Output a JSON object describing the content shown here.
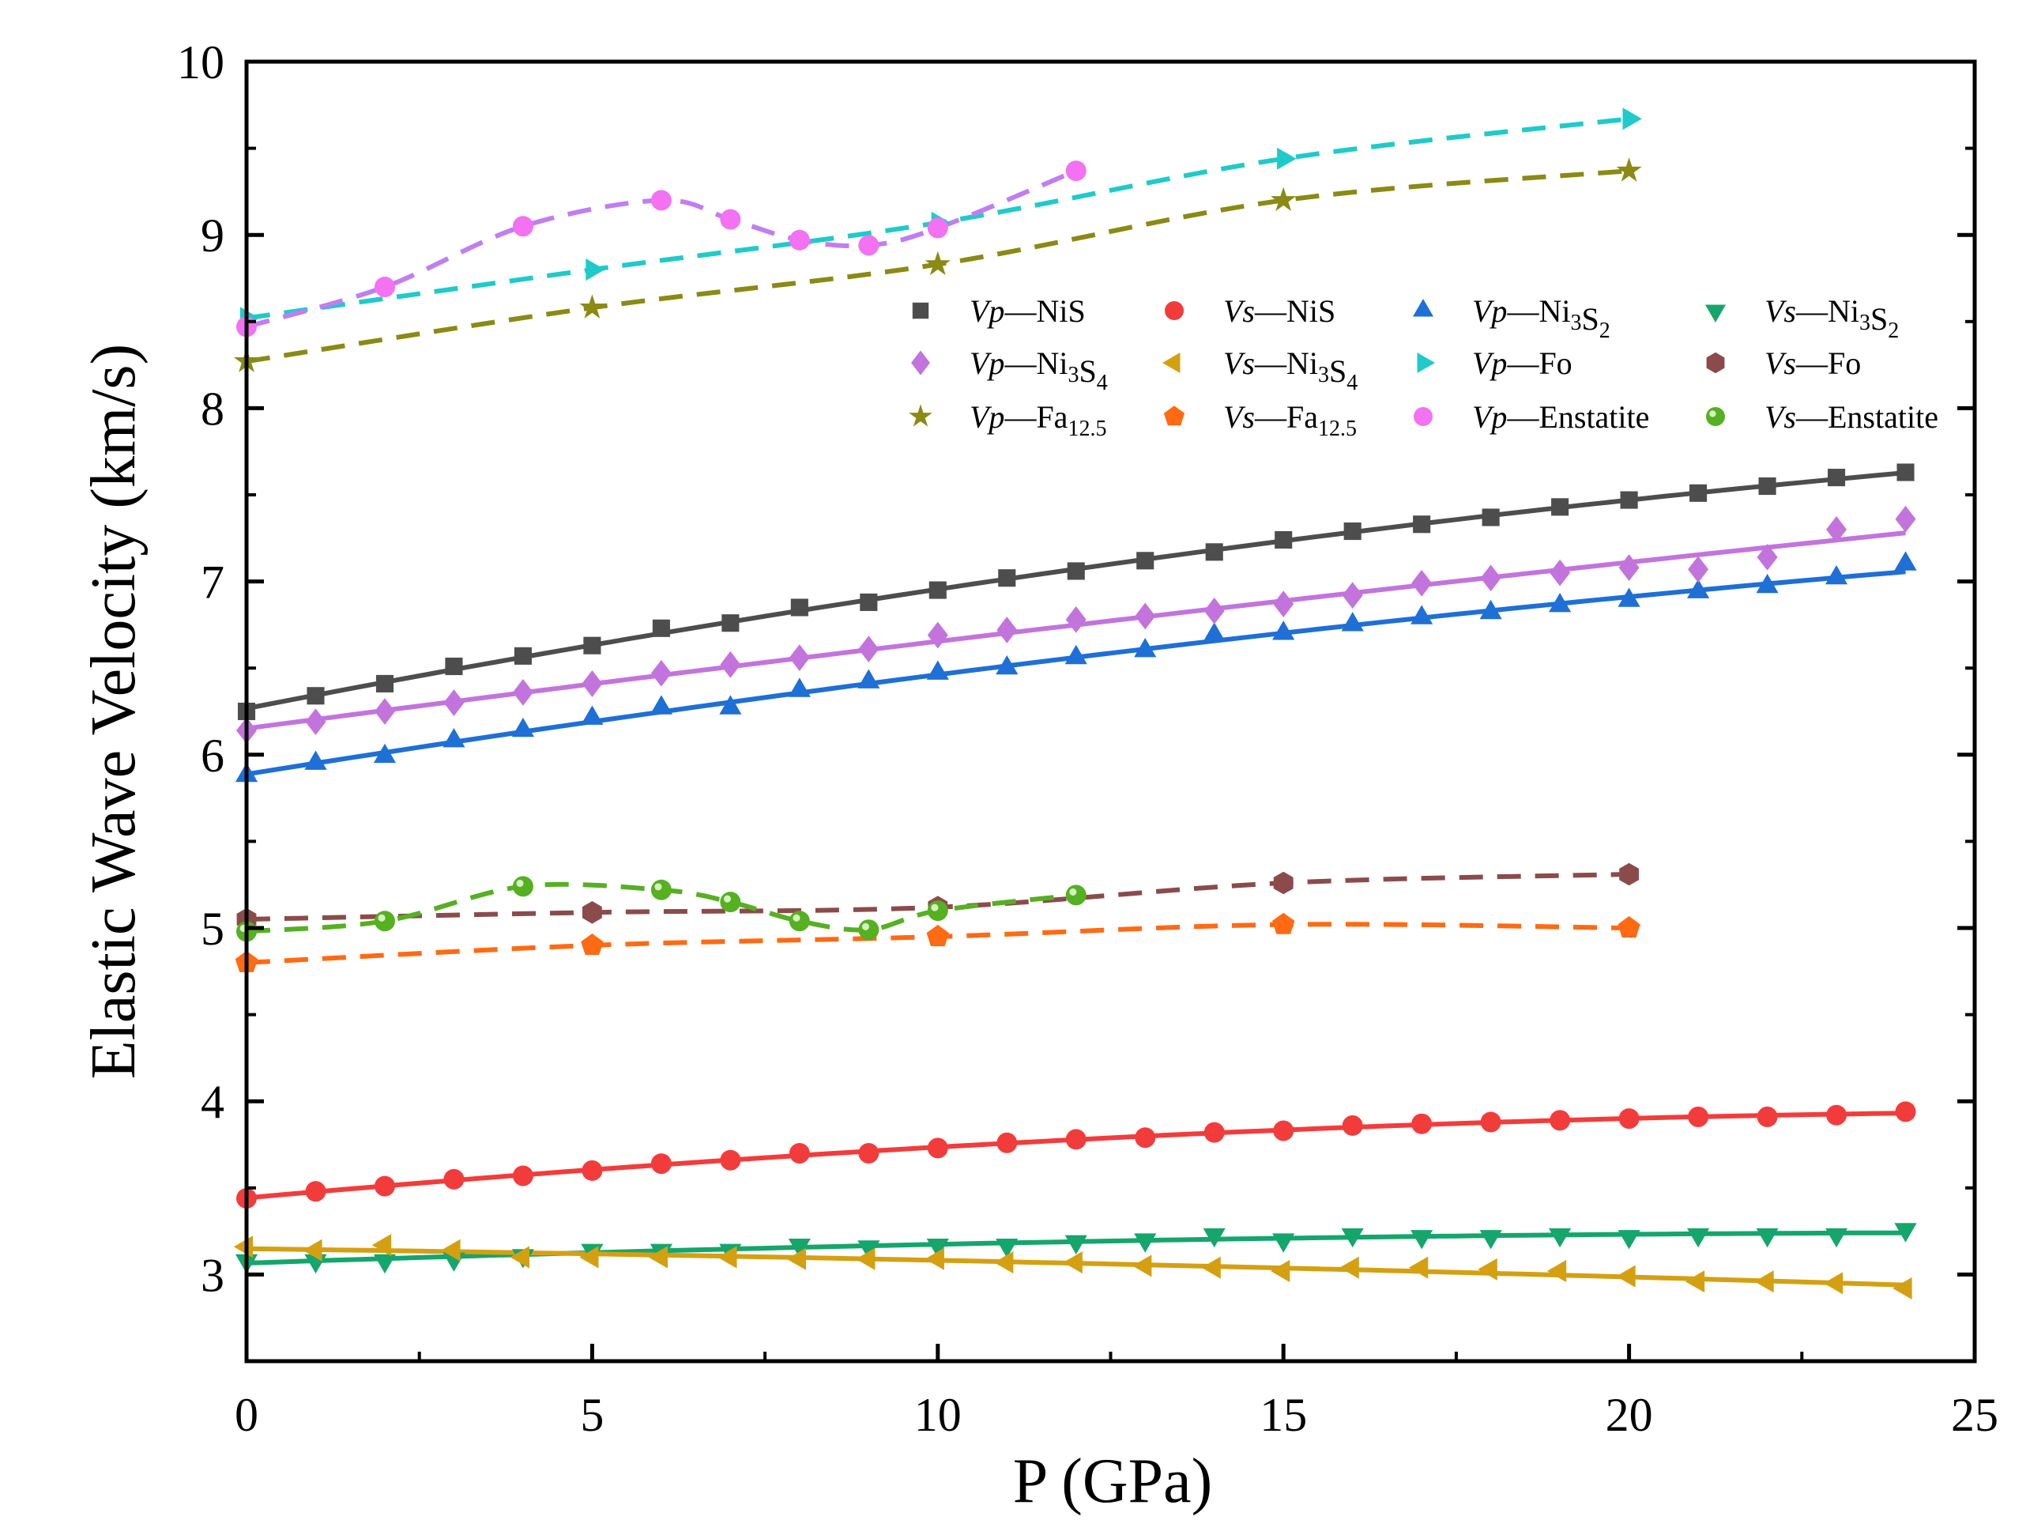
{
  "chart_data": {
    "type": "line",
    "title": "",
    "xlabel": "P (GPa)",
    "ylabel": "Elastic Wave Velocity (km/s)",
    "xlim": [
      0,
      25
    ],
    "ylim": [
      2.5,
      10
    ],
    "xticks": [
      "0",
      "5",
      "10",
      "15",
      "20",
      "25"
    ],
    "yticks": [
      "3",
      "4",
      "5",
      "6",
      "7",
      "8",
      "9",
      "10"
    ],
    "legend_placement": "upper-right",
    "series": [
      {
        "name": "Vp—NiS",
        "parts": [
          {
            "t": "Vp",
            "i": true
          },
          {
            "t": "—NiS"
          }
        ],
        "color": "#4d4d4d",
        "marker": "square",
        "line": "fit",
        "x": [
          0,
          1,
          2,
          3,
          4,
          5,
          6,
          7,
          8,
          9,
          10,
          11,
          12,
          13,
          14,
          15,
          16,
          17,
          18,
          19,
          20,
          21,
          22,
          23,
          24
        ],
        "y": [
          6.25,
          6.34,
          6.41,
          6.51,
          6.57,
          6.63,
          6.73,
          6.76,
          6.85,
          6.88,
          6.95,
          7.02,
          7.06,
          7.12,
          7.17,
          7.24,
          7.29,
          7.33,
          7.37,
          7.43,
          7.47,
          7.51,
          7.55,
          7.6,
          7.63
        ]
      },
      {
        "name": "Vs—NiS",
        "parts": [
          {
            "t": "Vs",
            "i": true
          },
          {
            "t": "—NiS"
          }
        ],
        "color": "#f23c3c",
        "marker": "circle",
        "line": "fit",
        "x": [
          0,
          1,
          2,
          3,
          4,
          5,
          6,
          7,
          8,
          9,
          10,
          11,
          12,
          13,
          14,
          15,
          16,
          17,
          18,
          19,
          20,
          21,
          22,
          23,
          24
        ],
        "y": [
          3.44,
          3.48,
          3.51,
          3.55,
          3.57,
          3.6,
          3.64,
          3.66,
          3.7,
          3.7,
          3.73,
          3.76,
          3.78,
          3.79,
          3.82,
          3.83,
          3.86,
          3.87,
          3.88,
          3.89,
          3.9,
          3.91,
          3.91,
          3.92,
          3.94
        ]
      },
      {
        "name": "Vp—Ni3S2",
        "parts": [
          {
            "t": "Vp",
            "i": true
          },
          {
            "t": "—Ni"
          },
          {
            "t": "3",
            "s": true
          },
          {
            "t": "S"
          },
          {
            "t": "2",
            "s": true
          }
        ],
        "color": "#1e6fd6",
        "marker": "triangle-up",
        "line": "fit",
        "x": [
          0,
          1,
          2,
          3,
          4,
          5,
          6,
          7,
          8,
          9,
          10,
          11,
          12,
          13,
          14,
          15,
          16,
          17,
          18,
          19,
          20,
          21,
          22,
          23,
          24
        ],
        "y": [
          5.88,
          5.95,
          5.99,
          6.08,
          6.14,
          6.21,
          6.27,
          6.27,
          6.37,
          6.42,
          6.47,
          6.5,
          6.56,
          6.6,
          6.69,
          6.7,
          6.75,
          6.79,
          6.82,
          6.86,
          6.89,
          6.94,
          6.97,
          7.02,
          7.1
        ]
      },
      {
        "name": "Vs—Ni3S2",
        "parts": [
          {
            "t": "Vs",
            "i": true
          },
          {
            "t": "—Ni"
          },
          {
            "t": "3",
            "s": true
          },
          {
            "t": "S"
          },
          {
            "t": "2",
            "s": true
          }
        ],
        "color": "#14a66c",
        "marker": "triangle-down",
        "line": "fit",
        "x": [
          0,
          1,
          2,
          3,
          4,
          5,
          6,
          7,
          8,
          9,
          10,
          11,
          12,
          13,
          14,
          15,
          16,
          17,
          18,
          19,
          20,
          21,
          22,
          23,
          24
        ],
        "y": [
          3.08,
          3.08,
          3.08,
          3.09,
          3.11,
          3.14,
          3.14,
          3.14,
          3.17,
          3.16,
          3.17,
          3.17,
          3.19,
          3.2,
          3.23,
          3.2,
          3.23,
          3.22,
          3.22,
          3.23,
          3.22,
          3.23,
          3.23,
          3.23,
          3.26
        ]
      },
      {
        "name": "Vp—Ni3S4",
        "parts": [
          {
            "t": "Vp",
            "i": true
          },
          {
            "t": "—Ni"
          },
          {
            "t": "3",
            "s": true
          },
          {
            "t": "S"
          },
          {
            "t": "4",
            "s": true
          }
        ],
        "color": "#c274dc",
        "marker": "diamond",
        "line": "fit",
        "x": [
          0,
          1,
          2,
          3,
          4,
          5,
          6,
          7,
          8,
          9,
          10,
          11,
          12,
          13,
          14,
          15,
          16,
          17,
          18,
          19,
          20,
          21,
          22,
          23,
          24
        ],
        "y": [
          6.14,
          6.19,
          6.25,
          6.3,
          6.36,
          6.41,
          6.47,
          6.52,
          6.56,
          6.61,
          6.69,
          6.72,
          6.78,
          6.8,
          6.83,
          6.87,
          6.92,
          6.99,
          7.02,
          7.05,
          7.08,
          7.07,
          7.14,
          7.3,
          7.36
        ]
      },
      {
        "name": "Vs—Ni3S4",
        "parts": [
          {
            "t": "Vs",
            "i": true
          },
          {
            "t": "—Ni"
          },
          {
            "t": "3",
            "s": true
          },
          {
            "t": "S"
          },
          {
            "t": "4",
            "s": true
          }
        ],
        "color": "#d4a012",
        "marker": "triangle-left",
        "line": "fit",
        "x": [
          0,
          1,
          2,
          3,
          4,
          5,
          6,
          7,
          8,
          9,
          10,
          11,
          12,
          13,
          14,
          15,
          16,
          17,
          18,
          19,
          20,
          21,
          22,
          23,
          24
        ],
        "y": [
          3.16,
          3.14,
          3.17,
          3.14,
          3.1,
          3.1,
          3.1,
          3.1,
          3.09,
          3.09,
          3.09,
          3.07,
          3.07,
          3.05,
          3.04,
          3.02,
          3.04,
          3.04,
          3.03,
          3.02,
          2.99,
          2.96,
          2.96,
          2.95,
          2.92
        ]
      },
      {
        "name": "Vp—Fo",
        "parts": [
          {
            "t": "Vp",
            "i": true
          },
          {
            "t": "—Fo"
          }
        ],
        "color": "#1fcaca",
        "marker": "triangle-right",
        "line": "dash",
        "x": [
          0,
          5,
          10,
          15,
          20
        ],
        "y": [
          8.52,
          8.8,
          9.07,
          9.44,
          9.67
        ]
      },
      {
        "name": "Vs—Fo",
        "parts": [
          {
            "t": "Vs",
            "i": true
          },
          {
            "t": "—Fo"
          }
        ],
        "color": "#8b4b4b",
        "marker": "hexagon",
        "line": "dash",
        "x": [
          0,
          5,
          10,
          15,
          20
        ],
        "y": [
          5.05,
          5.09,
          5.12,
          5.26,
          5.31
        ]
      },
      {
        "name": "Vp—Fa12.5",
        "parts": [
          {
            "t": "Vp",
            "i": true
          },
          {
            "t": "—Fa"
          },
          {
            "t": "12.5",
            "s": true
          }
        ],
        "color": "#8a8a14",
        "marker": "star",
        "line": "dash",
        "x": [
          0,
          5,
          10,
          15,
          20
        ],
        "y": [
          8.27,
          8.58,
          8.83,
          9.2,
          9.37
        ]
      },
      {
        "name": "Vs—Fa12.5",
        "parts": [
          {
            "t": "Vs",
            "i": true
          },
          {
            "t": "—Fa"
          },
          {
            "t": "12.5",
            "s": true
          }
        ],
        "color": "#ff6a12",
        "marker": "pentagon",
        "line": "dash",
        "x": [
          0,
          5,
          10,
          15,
          20
        ],
        "y": [
          4.8,
          4.9,
          4.95,
          5.02,
          5.0
        ]
      },
      {
        "name": "Vp—Enstatite",
        "parts": [
          {
            "t": "Vp",
            "i": true
          },
          {
            "t": "—Enstatite"
          }
        ],
        "color": "#f272f2",
        "marker": "circle",
        "line": "dash",
        "linecolor": "#c07ef0",
        "x": [
          0,
          2,
          4,
          6,
          7,
          8,
          9,
          10,
          12
        ],
        "y": [
          8.47,
          8.7,
          9.05,
          9.2,
          9.09,
          8.97,
          8.94,
          9.04,
          9.37
        ]
      },
      {
        "name": "Vs—Enstatite",
        "parts": [
          {
            "t": "Vs",
            "i": true
          },
          {
            "t": "—Enstatite"
          }
        ],
        "color": "#55b022",
        "marker": "sphere",
        "line": "dash",
        "x": [
          0,
          2,
          4,
          6,
          7,
          8,
          9,
          10,
          12
        ],
        "y": [
          4.98,
          5.04,
          5.24,
          5.22,
          5.15,
          5.04,
          4.99,
          5.1,
          5.19
        ]
      }
    ]
  }
}
